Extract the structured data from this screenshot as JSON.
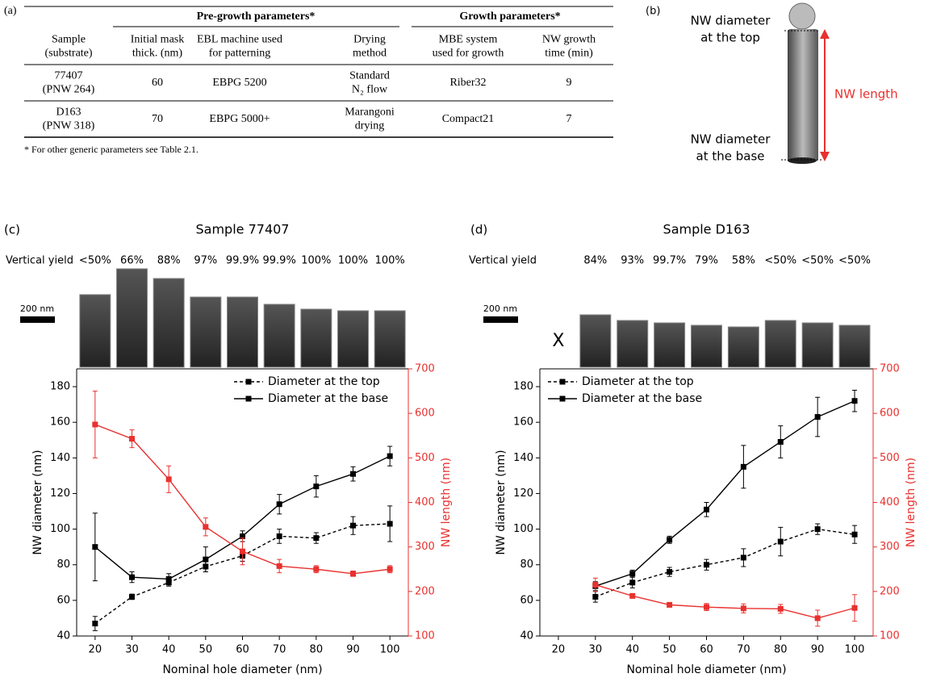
{
  "panel_labels": [
    "(a)",
    "(b)",
    "(c)",
    "(d)"
  ],
  "table": {
    "group_headers": [
      "Pre-growth parameters*",
      "Growth parameters*"
    ],
    "headers": [
      [
        "Sample",
        "(substrate)"
      ],
      [
        "Initial mask",
        "thick. (nm)"
      ],
      [
        "EBL machine used",
        "for patterning"
      ],
      [
        "Drying",
        "method"
      ],
      [
        "MBE system",
        "used for growth"
      ],
      [
        "NW growth",
        "time (min)"
      ]
    ],
    "rows": [
      [
        [
          "77407",
          "(PNW 264)"
        ],
        60,
        "EBPG 5200",
        [
          "Standard",
          "N₂ flow"
        ],
        "Riber32",
        9
      ],
      [
        [
          "D163",
          "(PNW 318)"
        ],
        70,
        "EBPG 5000+",
        [
          "Marangoni",
          "drying"
        ],
        "Compact21",
        7
      ]
    ],
    "footnote": "* For other generic parameters see Table 2.1."
  },
  "schematic": {
    "top_label": [
      "NW diameter",
      "at the top"
    ],
    "length_label": "NW length",
    "base_label": [
      "NW diameter",
      "at the base"
    ]
  },
  "chart_data": [
    {
      "type": "line",
      "title": "Sample 77407",
      "yield_title": "Vertical yield",
      "scale_bar": "200 nm",
      "yield_labels": [
        "<50%",
        "66%",
        "88%",
        "97%",
        "99.9%",
        "99.9%",
        "100%",
        "100%",
        "100%"
      ],
      "x": [
        20,
        30,
        40,
        50,
        60,
        70,
        80,
        90,
        100
      ],
      "xlim": [
        15,
        105
      ],
      "xticks": [
        20,
        30,
        40,
        50,
        60,
        70,
        80,
        90,
        100
      ],
      "ylim": [
        40,
        190
      ],
      "yticks": [
        40,
        60,
        80,
        100,
        120,
        140,
        160,
        180
      ],
      "y2lim": [
        100,
        700
      ],
      "y2ticks": [
        100,
        200,
        300,
        400,
        500,
        600,
        700
      ],
      "x_label": "Nominal hole diameter (nm)",
      "y_label": "NW diameter (nm)",
      "y2_label": "NW length (nm)",
      "legend": "upper right",
      "series": [
        {
          "name": "Diameter at the top",
          "color": "#000000",
          "line_style": "dashed",
          "values": [
            47,
            62,
            70,
            79,
            85,
            96,
            95,
            102,
            103
          ],
          "errors": [
            4,
            1.5,
            2,
            3,
            3,
            4,
            3,
            5,
            10
          ]
        },
        {
          "name": "Diameter at the base",
          "color": "#000000",
          "line_style": "solid",
          "values": [
            90,
            73,
            72,
            83,
            96,
            114,
            124,
            131,
            141
          ],
          "errors": [
            19,
            3,
            3,
            7,
            3,
            5.5,
            6,
            4,
            5.5
          ]
        },
        {
          "color": "#e8312f",
          "line_style": "solid",
          "axis": "y2",
          "values": [
            575,
            543,
            452,
            345,
            290,
            257,
            250,
            240,
            250
          ],
          "errors": [
            75,
            20,
            30,
            20,
            30,
            15,
            8,
            6,
            8
          ]
        }
      ]
    },
    {
      "type": "line",
      "title": "Sample D163",
      "yield_title": "Vertical yield",
      "scale_bar": "200 nm",
      "missing_marker": "X",
      "yield_labels": [
        null,
        "84%",
        "93%",
        "99.7%",
        "79%",
        "58%",
        "<50%",
        "<50%",
        "<50%"
      ],
      "x": [
        20,
        30,
        40,
        50,
        60,
        70,
        80,
        90,
        100
      ],
      "xlim": [
        15,
        105
      ],
      "xticks": [
        20,
        30,
        40,
        50,
        60,
        70,
        80,
        90,
        100
      ],
      "ylim": [
        40,
        190
      ],
      "yticks": [
        40,
        60,
        80,
        100,
        120,
        140,
        160,
        180
      ],
      "y2lim": [
        100,
        700
      ],
      "y2ticks": [
        100,
        200,
        300,
        400,
        500,
        600,
        700
      ],
      "x_label": "Nominal hole diameter (nm)",
      "y_label": "NW diameter (nm)",
      "y2_label": "NW length (nm)",
      "legend": "upper left",
      "series": [
        {
          "name": "Diameter at the top",
          "color": "#000000",
          "line_style": "dashed",
          "values": [
            null,
            62,
            70,
            76,
            80,
            84,
            93,
            100,
            97
          ],
          "errors": [
            null,
            3,
            3,
            2.5,
            3,
            5,
            8,
            3,
            5
          ]
        },
        {
          "name": "Diameter at the base",
          "color": "#000000",
          "line_style": "solid",
          "values": [
            null,
            68,
            75,
            94,
            111,
            135,
            149,
            163,
            172
          ],
          "errors": [
            null,
            2.5,
            2,
            2,
            4,
            12,
            9,
            11,
            6
          ]
        },
        {
          "color": "#e8312f",
          "line_style": "solid",
          "axis": "y2",
          "values": [
            null,
            215,
            190,
            170,
            165,
            162,
            161,
            140,
            163
          ],
          "errors": [
            null,
            15,
            5,
            5,
            8,
            10,
            10,
            18,
            30
          ]
        }
      ]
    }
  ]
}
